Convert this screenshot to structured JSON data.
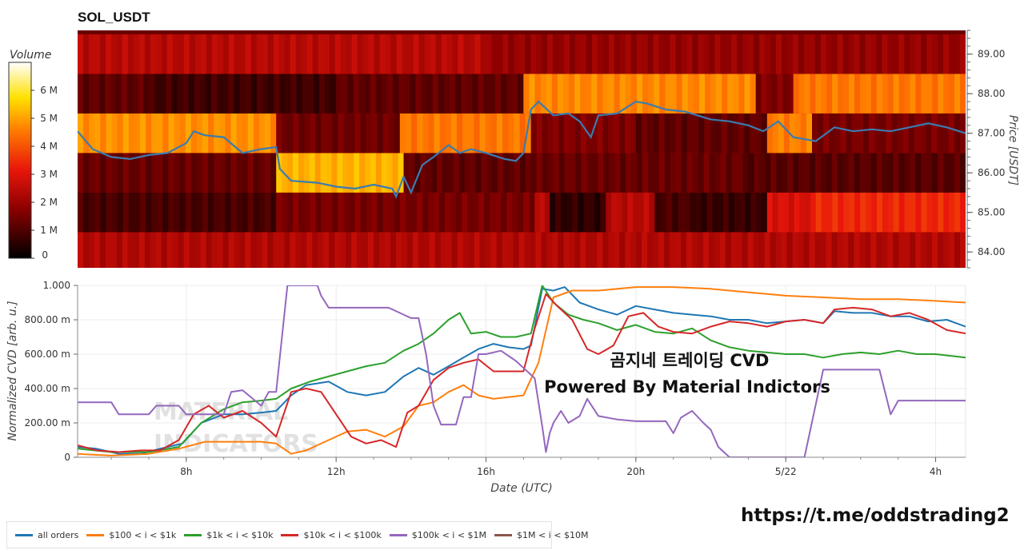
{
  "title": "SOL_USDT",
  "annotation": [
    "곰지네 트레이딩 CVD",
    "Powered By Material Indictors"
  ],
  "watermark": [
    "MATERIAL",
    "INDICATORS"
  ],
  "url_text": "https://t.me/oddstrading2",
  "colors": {
    "all orders": "#1f77b4",
    "$100 < i < $1k": "#ff7f0e",
    "$1k < i < $10k": "#2ca02c",
    "$10k < i < $100k": "#d62728",
    "$100k < i < $1M": "#9467bd",
    "$1M < i < $10M": "#8c564b"
  },
  "chart_data": [
    {
      "type": "heatmap",
      "title": "SOL_USDT",
      "ylabel": "Price [USDT]",
      "colorbar_title": "Volume",
      "colorbar_ticks": [
        "0",
        "1 M",
        "2 M",
        "3 M",
        "4 M",
        "5 M",
        "6 M"
      ],
      "colorbar_range": [
        0,
        7000000
      ],
      "y_ticks": [
        "84.00",
        "85.00",
        "86.00",
        "87.00",
        "88.00",
        "89.00"
      ],
      "ylim": [
        83.6,
        89.6
      ],
      "x_range_hours": [
        5.1,
        28.8
      ],
      "price_bands": [
        84.0,
        85.0,
        86.0,
        87.0,
        88.0,
        89.0
      ],
      "band_volume_segments": [
        {
          "band": 84.0,
          "segments": [
            [
              5.1,
              28.8,
              2.3
            ]
          ]
        },
        {
          "band": 85.0,
          "segments": [
            [
              5.1,
              10.4,
              0.9
            ],
            [
              10.4,
              17.3,
              1.5
            ],
            [
              17.3,
              17.7,
              2.4
            ],
            [
              17.7,
              19.2,
              0.6
            ],
            [
              19.2,
              20.5,
              2.4
            ],
            [
              20.5,
              21.6,
              0.9
            ],
            [
              21.6,
              23.5,
              0.7
            ],
            [
              23.5,
              24.8,
              2.9
            ],
            [
              24.8,
              28.8,
              3.4
            ]
          ]
        },
        {
          "band": 86.0,
          "segments": [
            [
              5.1,
              10.4,
              1.3
            ],
            [
              10.4,
              13.8,
              5.2
            ],
            [
              13.8,
              17.2,
              1.2
            ],
            [
              17.2,
              23.0,
              1.3
            ],
            [
              23.0,
              28.8,
              1.1
            ]
          ]
        },
        {
          "band": 87.0,
          "segments": [
            [
              5.1,
              10.4,
              4.8
            ],
            [
              10.4,
              13.7,
              1.4
            ],
            [
              13.7,
              17.2,
              4.5
            ],
            [
              17.2,
              20.0,
              1.6
            ],
            [
              20.0,
              23.5,
              1.2
            ],
            [
              23.5,
              24.7,
              4.6
            ],
            [
              24.7,
              28.8,
              1.5
            ]
          ]
        },
        {
          "band": 88.0,
          "segments": [
            [
              5.1,
              7.0,
              1.2
            ],
            [
              7.0,
              12.0,
              0.8
            ],
            [
              12.0,
              17.0,
              1.2
            ],
            [
              17.0,
              23.2,
              4.7
            ],
            [
              23.2,
              24.2,
              1.6
            ],
            [
              24.2,
              28.8,
              4.5
            ]
          ]
        },
        {
          "band": 89.0,
          "segments": [
            [
              5.1,
              16.0,
              2.4
            ],
            [
              16.0,
              28.8,
              1.9
            ]
          ]
        }
      ],
      "price_series": {
        "x": [
          5.1,
          5.5,
          6.0,
          6.5,
          7.0,
          7.5,
          8.0,
          8.2,
          8.5,
          9.0,
          9.5,
          10.0,
          10.4,
          10.5,
          10.8,
          11.5,
          12.0,
          12.5,
          13.0,
          13.5,
          13.6,
          13.8,
          14.0,
          14.3,
          14.6,
          15.0,
          15.3,
          15.6,
          16.0,
          16.5,
          16.8,
          17.0,
          17.2,
          17.4,
          17.8,
          18.2,
          18.5,
          18.8,
          19.0,
          19.5,
          20.0,
          20.3,
          20.8,
          21.3,
          22.0,
          22.5,
          23.0,
          23.4,
          23.8,
          24.2,
          24.8,
          25.3,
          25.8,
          26.3,
          26.8,
          27.3,
          27.8,
          28.3,
          28.8
        ],
        "y": [
          87.05,
          86.6,
          86.4,
          86.35,
          86.45,
          86.5,
          86.75,
          87.05,
          86.95,
          86.9,
          86.5,
          86.6,
          86.65,
          86.1,
          85.8,
          85.75,
          85.65,
          85.6,
          85.7,
          85.6,
          85.4,
          85.9,
          85.5,
          86.2,
          86.4,
          86.7,
          86.5,
          86.6,
          86.5,
          86.35,
          86.3,
          86.5,
          87.6,
          87.8,
          87.45,
          87.5,
          87.3,
          86.9,
          87.45,
          87.5,
          87.8,
          87.75,
          87.6,
          87.55,
          87.35,
          87.3,
          87.2,
          87.05,
          87.3,
          86.9,
          86.8,
          87.15,
          87.05,
          87.1,
          87.05,
          87.15,
          87.25,
          87.15,
          87.0
        ]
      }
    },
    {
      "type": "line",
      "xlabel": "Date (UTC)",
      "ylabel": "Normalized CVD [arb. u.]",
      "x_tick_labels": [
        "8h",
        "12h",
        "16h",
        "20h",
        "5/22",
        "4h"
      ],
      "x_tick_hours": [
        8,
        12,
        16,
        20,
        24,
        28
      ],
      "x_range_hours": [
        5.1,
        28.8
      ],
      "y_tick_labels": [
        "0",
        "200.00 m",
        "400.00 m",
        "600.00 m",
        "800.00 m",
        "1.000"
      ],
      "ylim": [
        0,
        1
      ],
      "grid": true,
      "legend_position": "bottom",
      "series": [
        {
          "name": "all orders",
          "x": [
            5.1,
            5.6,
            6.2,
            6.8,
            7.3,
            7.9,
            8.4,
            9.0,
            9.5,
            10.0,
            10.4,
            10.8,
            11.2,
            11.8,
            12.3,
            12.8,
            13.3,
            13.8,
            14.2,
            14.6,
            15.0,
            15.4,
            15.8,
            16.2,
            16.6,
            17.0,
            17.2,
            17.5,
            17.8,
            18.1,
            18.5,
            19.0,
            19.5,
            20.0,
            20.5,
            21.0,
            21.5,
            22.0,
            22.5,
            23.0,
            23.5,
            24.0,
            24.5,
            25.0,
            25.3,
            25.8,
            26.3,
            26.8,
            27.3,
            27.8,
            28.3,
            28.8
          ],
          "y": [
            0.06,
            0.05,
            0.02,
            0.02,
            0.05,
            0.08,
            0.2,
            0.25,
            0.25,
            0.26,
            0.27,
            0.36,
            0.42,
            0.44,
            0.38,
            0.36,
            0.38,
            0.47,
            0.52,
            0.48,
            0.53,
            0.58,
            0.63,
            0.66,
            0.64,
            0.63,
            0.65,
            0.98,
            0.97,
            0.99,
            0.9,
            0.86,
            0.83,
            0.88,
            0.86,
            0.84,
            0.83,
            0.82,
            0.8,
            0.8,
            0.78,
            0.79,
            0.8,
            0.78,
            0.85,
            0.84,
            0.84,
            0.82,
            0.82,
            0.79,
            0.8,
            0.76
          ]
        },
        {
          "name": "$100 < i < $1k",
          "x": [
            5.1,
            6.0,
            7.0,
            7.8,
            8.5,
            9.3,
            10.0,
            10.4,
            10.8,
            11.2,
            11.8,
            12.3,
            12.8,
            13.3,
            13.8,
            14.2,
            14.6,
            15.0,
            15.4,
            15.8,
            16.2,
            16.6,
            17.0,
            17.4,
            17.8,
            18.3,
            19.0,
            20.0,
            21.0,
            22.0,
            23.0,
            24.0,
            25.0,
            26.0,
            27.0,
            28.0,
            28.8
          ],
          "y": [
            0.02,
            0.01,
            0.02,
            0.05,
            0.09,
            0.09,
            0.09,
            0.08,
            0.02,
            0.04,
            0.1,
            0.15,
            0.16,
            0.12,
            0.18,
            0.3,
            0.32,
            0.38,
            0.42,
            0.36,
            0.34,
            0.35,
            0.36,
            0.55,
            0.93,
            0.97,
            0.97,
            0.99,
            0.99,
            0.98,
            0.96,
            0.94,
            0.93,
            0.92,
            0.92,
            0.91,
            0.9
          ]
        },
        {
          "name": "$1k < i < $10k",
          "x": [
            5.1,
            6.0,
            7.0,
            7.8,
            8.4,
            9.0,
            9.5,
            10.0,
            10.4,
            10.8,
            11.3,
            11.8,
            12.3,
            12.8,
            13.3,
            13.8,
            14.2,
            14.6,
            15.0,
            15.3,
            15.6,
            16.0,
            16.4,
            16.8,
            17.2,
            17.5,
            17.8,
            18.2,
            18.6,
            19.0,
            19.5,
            20.0,
            20.5,
            21.0,
            21.5,
            22.0,
            22.5,
            23.0,
            23.5,
            24.0,
            24.5,
            25.0,
            25.5,
            26.0,
            26.5,
            27.0,
            27.5,
            28.0,
            28.8
          ],
          "y": [
            0.05,
            0.03,
            0.03,
            0.06,
            0.2,
            0.28,
            0.32,
            0.33,
            0.34,
            0.4,
            0.44,
            0.47,
            0.5,
            0.53,
            0.55,
            0.62,
            0.66,
            0.72,
            0.8,
            0.84,
            0.72,
            0.73,
            0.7,
            0.7,
            0.72,
            1.0,
            0.9,
            0.83,
            0.8,
            0.78,
            0.74,
            0.77,
            0.73,
            0.72,
            0.75,
            0.68,
            0.64,
            0.62,
            0.61,
            0.6,
            0.6,
            0.58,
            0.6,
            0.61,
            0.6,
            0.62,
            0.6,
            0.6,
            0.58
          ]
        },
        {
          "name": "$10k < i < $100k",
          "x": [
            5.1,
            5.6,
            6.2,
            6.8,
            7.3,
            7.8,
            8.2,
            8.6,
            9.0,
            9.5,
            10.0,
            10.4,
            10.8,
            11.2,
            11.6,
            12.0,
            12.4,
            12.8,
            13.2,
            13.6,
            13.9,
            14.2,
            14.6,
            15.0,
            15.4,
            15.8,
            16.2,
            16.6,
            17.0,
            17.3,
            17.6,
            17.9,
            18.3,
            18.7,
            19.0,
            19.4,
            19.8,
            20.2,
            20.6,
            21.0,
            21.5,
            22.0,
            22.5,
            23.0,
            23.5,
            24.0,
            24.5,
            25.0,
            25.3,
            25.8,
            26.3,
            26.8,
            27.3,
            27.8,
            28.3,
            28.8
          ],
          "y": [
            0.07,
            0.04,
            0.03,
            0.04,
            0.04,
            0.1,
            0.25,
            0.3,
            0.23,
            0.27,
            0.2,
            0.12,
            0.38,
            0.4,
            0.38,
            0.25,
            0.12,
            0.08,
            0.1,
            0.06,
            0.26,
            0.3,
            0.45,
            0.52,
            0.55,
            0.57,
            0.5,
            0.5,
            0.5,
            0.75,
            0.95,
            0.88,
            0.8,
            0.63,
            0.6,
            0.65,
            0.82,
            0.84,
            0.76,
            0.73,
            0.72,
            0.76,
            0.79,
            0.78,
            0.76,
            0.79,
            0.8,
            0.78,
            0.86,
            0.87,
            0.86,
            0.82,
            0.84,
            0.8,
            0.74,
            0.72
          ]
        },
        {
          "name": "$100k < i < $1M",
          "x": [
            5.1,
            5.6,
            6.0,
            6.2,
            6.6,
            7.0,
            7.2,
            7.8,
            8.0,
            8.5,
            9.0,
            9.2,
            9.5,
            10.0,
            10.2,
            10.4,
            10.7,
            11.0,
            11.2,
            11.5,
            11.6,
            11.8,
            12.2,
            12.8,
            13.4,
            14.0,
            14.2,
            14.4,
            14.6,
            14.8,
            15.0,
            15.2,
            15.4,
            15.6,
            15.8,
            16.0,
            16.4,
            16.8,
            17.0,
            17.3,
            17.5,
            17.6,
            17.7,
            17.8,
            18.0,
            18.2,
            18.5,
            18.7,
            19.0,
            19.5,
            20.0,
            20.5,
            20.8,
            21.0,
            21.2,
            21.5,
            21.8,
            22.0,
            22.2,
            22.5,
            22.8,
            23.0,
            23.5,
            24.0,
            24.5,
            25.0,
            25.3,
            25.5,
            26.0,
            26.5,
            26.8,
            27.0,
            27.3,
            27.6,
            28.0,
            28.5,
            28.8
          ],
          "y": [
            0.32,
            0.32,
            0.32,
            0.25,
            0.25,
            0.25,
            0.3,
            0.3,
            0.25,
            0.25,
            0.25,
            0.38,
            0.39,
            0.3,
            0.38,
            0.38,
            1.0,
            1.0,
            1.0,
            1.0,
            0.94,
            0.87,
            0.87,
            0.87,
            0.87,
            0.81,
            0.81,
            0.6,
            0.3,
            0.19,
            0.19,
            0.19,
            0.35,
            0.35,
            0.6,
            0.6,
            0.62,
            0.56,
            0.52,
            0.46,
            0.18,
            0.03,
            0.14,
            0.2,
            0.27,
            0.2,
            0.24,
            0.34,
            0.24,
            0.22,
            0.21,
            0.21,
            0.21,
            0.14,
            0.23,
            0.27,
            0.2,
            0.16,
            0.06,
            0.0,
            0.0,
            0.0,
            0.0,
            0.0,
            0.0,
            0.51,
            0.51,
            0.51,
            0.51,
            0.51,
            0.25,
            0.33,
            0.33,
            0.33,
            0.33,
            0.33,
            0.33
          ]
        },
        {
          "name": "$1M < i < $10M",
          "x": [],
          "y": []
        }
      ]
    }
  ]
}
